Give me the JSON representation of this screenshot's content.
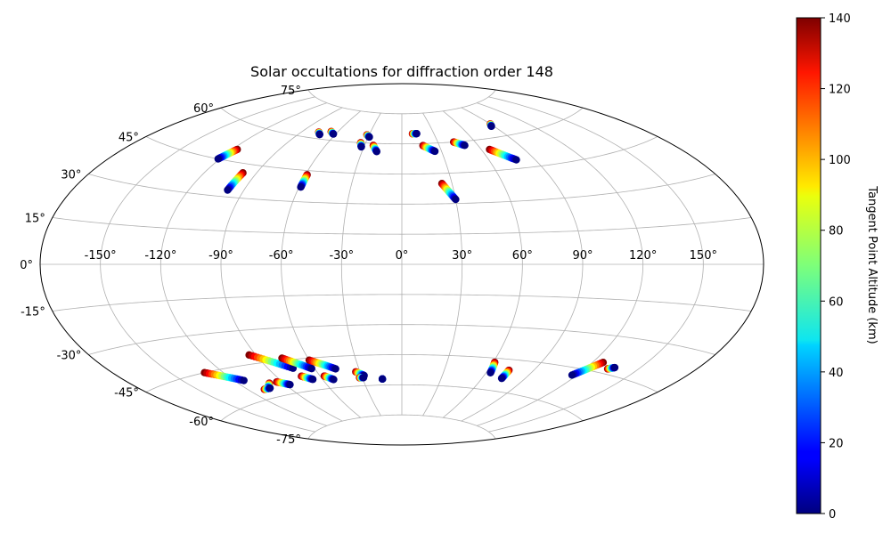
{
  "chart_data": {
    "type": "scatter",
    "title": "Solar occultations for diffraction order 148",
    "projection": "Aitoff",
    "grid": true,
    "lon_ticks": [
      {
        "value": -150,
        "label": "-150°"
      },
      {
        "value": -120,
        "label": "-120°"
      },
      {
        "value": -90,
        "label": "-90°"
      },
      {
        "value": -60,
        "label": "-60°"
      },
      {
        "value": -30,
        "label": "-30°"
      },
      {
        "value": 0,
        "label": "0°"
      },
      {
        "value": 30,
        "label": "30°"
      },
      {
        "value": 60,
        "label": "60°"
      },
      {
        "value": 90,
        "label": "90°"
      },
      {
        "value": 120,
        "label": "120°"
      },
      {
        "value": 150,
        "label": "150°"
      }
    ],
    "lat_ticks": [
      {
        "value": 75,
        "label": "75°"
      },
      {
        "value": 60,
        "label": "60°"
      },
      {
        "value": 45,
        "label": "45°"
      },
      {
        "value": 30,
        "label": "30°"
      },
      {
        "value": 15,
        "label": "15°"
      },
      {
        "value": 0,
        "label": "0°"
      },
      {
        "value": -15,
        "label": "-15°"
      },
      {
        "value": -30,
        "label": "-30°"
      },
      {
        "value": -45,
        "label": "-45°"
      },
      {
        "value": -60,
        "label": "-60°"
      },
      {
        "value": -75,
        "label": "-75°"
      }
    ],
    "colorbar": {
      "label": "Tangent Point Altitude (km)",
      "range": [
        0,
        140
      ],
      "ticks": [
        {
          "value": 0,
          "label": "0"
        },
        {
          "value": 20,
          "label": "20"
        },
        {
          "value": 40,
          "label": "40"
        },
        {
          "value": 60,
          "label": "60"
        },
        {
          "value": 80,
          "label": "80"
        },
        {
          "value": 100,
          "label": "100"
        },
        {
          "value": 120,
          "label": "120"
        },
        {
          "value": 140,
          "label": "140"
        }
      ],
      "colormap": "jet"
    },
    "tracks": [
      {
        "lon_top": -117,
        "lat_top": 50,
        "lon_bottom": -121,
        "lat_bottom": 45
      },
      {
        "lon_top": -98,
        "lat_top": 41,
        "lon_bottom": -99,
        "lat_bottom": 33
      },
      {
        "lon_top": -59,
        "lat_top": 43,
        "lon_bottom": -59,
        "lat_bottom": 37
      },
      {
        "lon_top": -76,
        "lat_top": 63,
        "lon_bottom": -73,
        "lat_bottom": 62
      },
      {
        "lon_top": -66,
        "lat_top": 64,
        "lon_bottom": -62,
        "lat_bottom": 63
      },
      {
        "lon_top": -34,
        "lat_top": 60,
        "lon_bottom": -32,
        "lat_bottom": 58
      },
      {
        "lon_top": -32,
        "lat_top": 64,
        "lon_bottom": -29,
        "lat_bottom": 63
      },
      {
        "lon_top": -23,
        "lat_top": 59,
        "lon_bottom": -19,
        "lat_bottom": 56
      },
      {
        "lon_top": 10,
        "lat_top": 65,
        "lon_bottom": 14,
        "lat_bottom": 65
      },
      {
        "lon_top": 17,
        "lat_top": 59,
        "lon_bottom": 25,
        "lat_bottom": 56
      },
      {
        "lon_top": 24,
        "lat_top": 40,
        "lon_bottom": 30,
        "lat_bottom": 32
      },
      {
        "lon_top": 43,
        "lat_top": 60,
        "lon_bottom": 50,
        "lat_bottom": 58
      },
      {
        "lon_top": 66,
        "lat_top": 55,
        "lon_bottom": 78,
        "lat_bottom": 49
      },
      {
        "lon_top": 90,
        "lat_top": 66,
        "lon_bottom": 88,
        "lat_bottom": 65
      },
      {
        "lon_top": -131,
        "lat_top": -45,
        "lon_bottom": -114,
        "lat_bottom": -51
      },
      {
        "lon_top": -94,
        "lat_top": -41,
        "lon_bottom": -74,
        "lat_bottom": -49
      },
      {
        "lon_top": -76,
        "lat_top": -44,
        "lon_bottom": -62,
        "lat_bottom": -50
      },
      {
        "lon_top": -60,
        "lat_top": -46,
        "lon_bottom": -46,
        "lat_bottom": -51
      },
      {
        "lon_top": -100,
        "lat_top": -54,
        "lon_bottom": -106,
        "lat_bottom": -56
      },
      {
        "lon_top": -109,
        "lat_top": -56,
        "lon_bottom": -104,
        "lat_bottom": -56
      },
      {
        "lon_top": -94,
        "lat_top": -54,
        "lon_bottom": -87,
        "lat_bottom": -56
      },
      {
        "lon_top": -73,
        "lat_top": -53,
        "lon_bottom": -67,
        "lat_bottom": -55
      },
      {
        "lon_top": -57,
        "lat_top": -54,
        "lon_bottom": -52,
        "lat_bottom": -56
      },
      {
        "lon_top": -33,
        "lat_top": -53,
        "lon_bottom": -28,
        "lat_bottom": -55
      },
      {
        "lon_top": -32,
        "lat_top": -56,
        "lon_bottom": -29,
        "lat_bottom": -56
      },
      {
        "lon_top": -15,
        "lat_top": -57,
        "lon_bottom": -15,
        "lat_bottom": -57
      },
      {
        "lon_top": 61,
        "lat_top": -47,
        "lon_bottom": 63,
        "lat_bottom": -52
      },
      {
        "lon_top": 74,
        "lat_top": -50,
        "lon_bottom": 74,
        "lat_bottom": -54
      },
      {
        "lon_top": 126,
        "lat_top": -41,
        "lon_bottom": 117,
        "lat_bottom": -48
      },
      {
        "lon_top": 133,
        "lat_top": -43,
        "lon_bottom": 136,
        "lat_bottom": -42
      }
    ]
  }
}
